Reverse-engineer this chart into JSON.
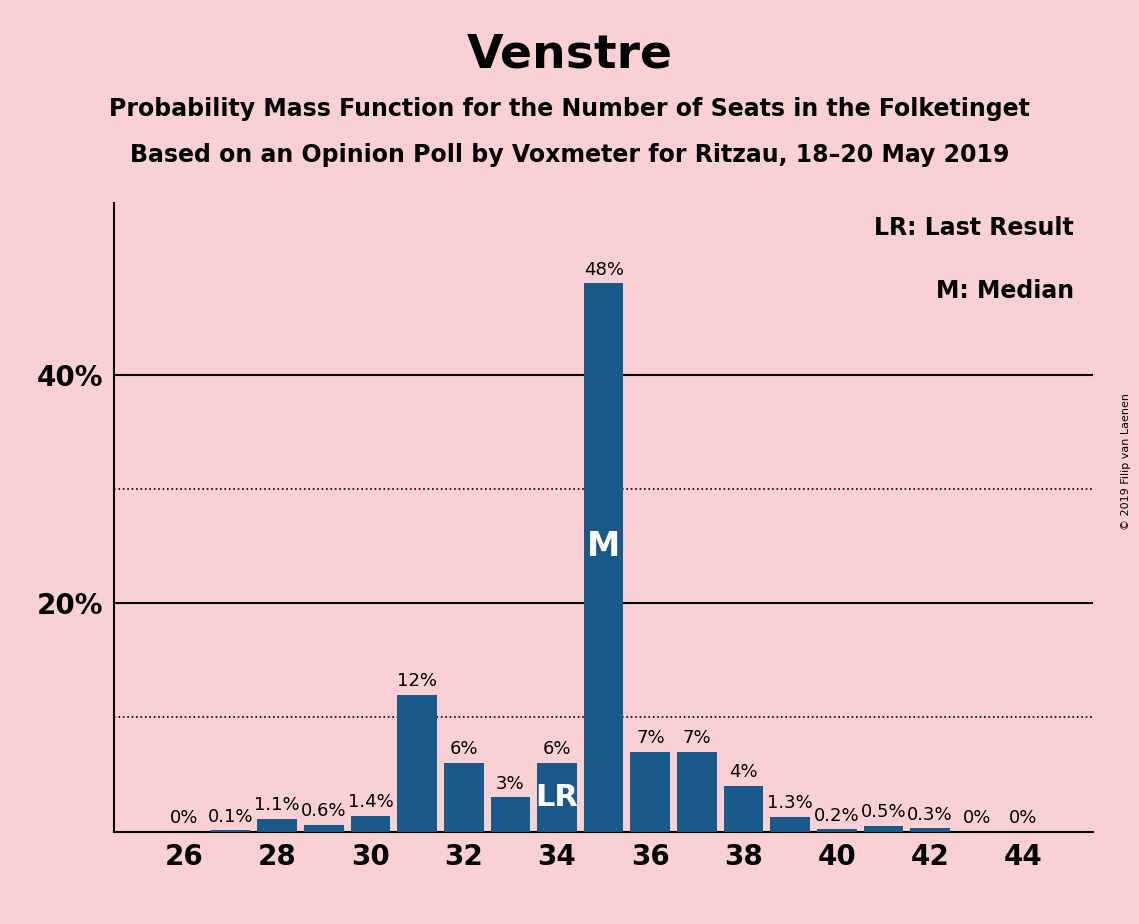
{
  "title": "Venstre",
  "subtitle1": "Probability Mass Function for the Number of Seats in the Folketinget",
  "subtitle2": "Based on an Opinion Poll by Voxmeter for Ritzau, 18–20 May 2019",
  "copyright": "© 2019 Filip van Laenen",
  "legend_lr": "LR: Last Result",
  "legend_m": "M: Median",
  "background_color": "#f9d0d4",
  "bar_color": "#1a5a8a",
  "seats": [
    26,
    27,
    28,
    29,
    30,
    31,
    32,
    33,
    34,
    35,
    36,
    37,
    38,
    39,
    40,
    41,
    42,
    43,
    44
  ],
  "probabilities": [
    0.0,
    0.1,
    1.1,
    0.6,
    1.4,
    12.0,
    6.0,
    3.0,
    6.0,
    48.0,
    7.0,
    7.0,
    4.0,
    1.3,
    0.2,
    0.5,
    0.3,
    0.0,
    0.0
  ],
  "labels": [
    "0%",
    "0.1%",
    "1.1%",
    "0.6%",
    "1.4%",
    "12%",
    "6%",
    "3%",
    "6%",
    "48%",
    "7%",
    "7%",
    "4%",
    "1.3%",
    "0.2%",
    "0.5%",
    "0.3%",
    "0%",
    "0%"
  ],
  "median_seat": 35,
  "lr_seat": 34,
  "ylim_max": 55,
  "solid_lines": [
    20,
    40
  ],
  "dotted_lines": [
    10,
    30
  ],
  "ytick_positions": [
    20,
    40
  ],
  "ytick_labels": [
    "20%",
    "40%"
  ],
  "xticks": [
    26,
    28,
    30,
    32,
    34,
    36,
    38,
    40,
    42,
    44
  ],
  "title_fontsize": 34,
  "subtitle_fontsize": 17,
  "tick_fontsize": 20,
  "label_fontsize": 13,
  "annotation_fontsize_m": 24,
  "annotation_fontsize_lr": 22,
  "legend_fontsize": 17,
  "copyright_fontsize": 8
}
